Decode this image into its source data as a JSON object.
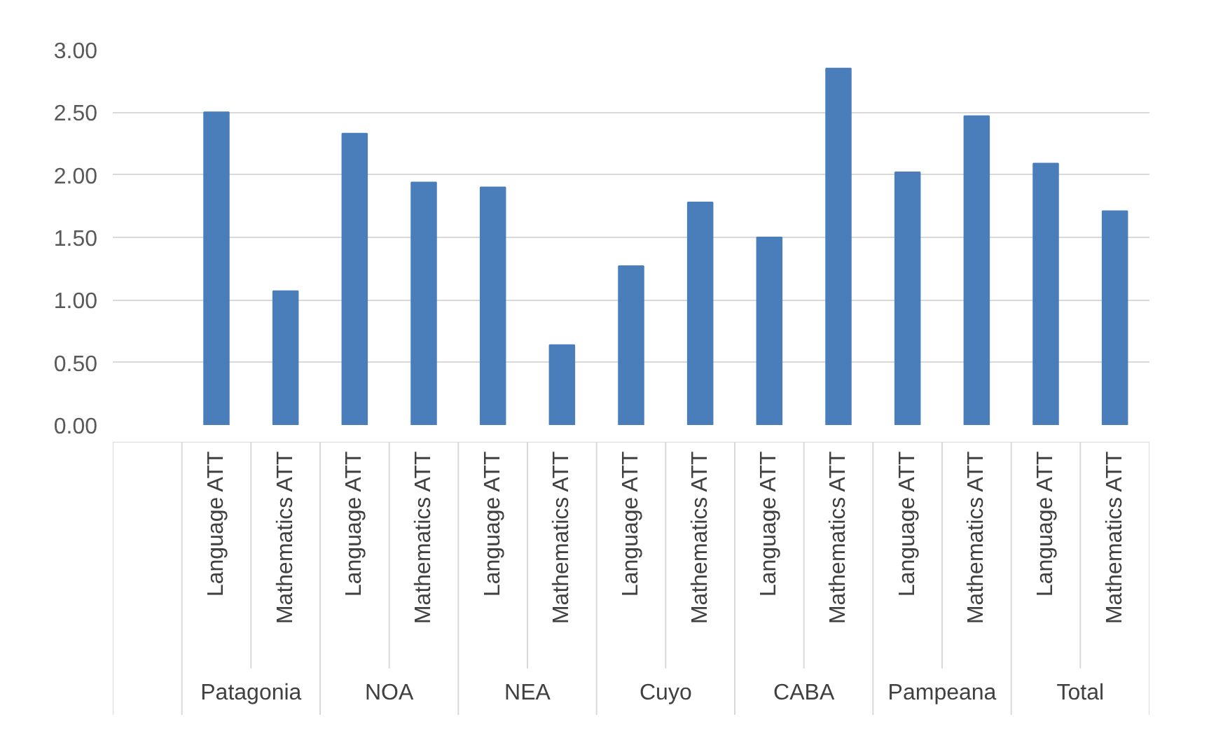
{
  "chart_data": {
    "type": "bar",
    "categories": [
      null,
      "Language ATT",
      "Mathematics ATT",
      "Language ATT",
      "Mathematics ATT",
      "Language ATT",
      "Mathematics ATT",
      "Language ATT",
      "Mathematics ATT",
      "Language ATT",
      "Mathematics ATT",
      "Language ATT",
      "Mathematics ATT",
      "Language ATT",
      "Mathematics ATT"
    ],
    "values": [
      null,
      2.5,
      1.07,
      2.33,
      1.94,
      1.9,
      0.64,
      1.27,
      1.78,
      1.5,
      2.85,
      2.02,
      2.47,
      2.09,
      1.71
    ],
    "color": "#4a7ebb",
    "annotations": [
      "Patagonia",
      "NOA",
      "NEA",
      "Cuyo",
      "CABA",
      "Pampeana",
      "Total"
    ],
    "ylim": [
      0,
      3
    ],
    "yticks": [
      {
        "value": 0,
        "label": "0.00"
      },
      {
        "value": 0.5,
        "label": "0.50"
      },
      {
        "value": 1,
        "label": "1.00"
      },
      {
        "value": 1.5,
        "label": "1.50"
      },
      {
        "value": 2,
        "label": "2.00"
      },
      {
        "value": 2.5,
        "label": "2.50"
      },
      {
        "value": 3,
        "label": "3.00"
      }
    ],
    "grid": "y"
  }
}
